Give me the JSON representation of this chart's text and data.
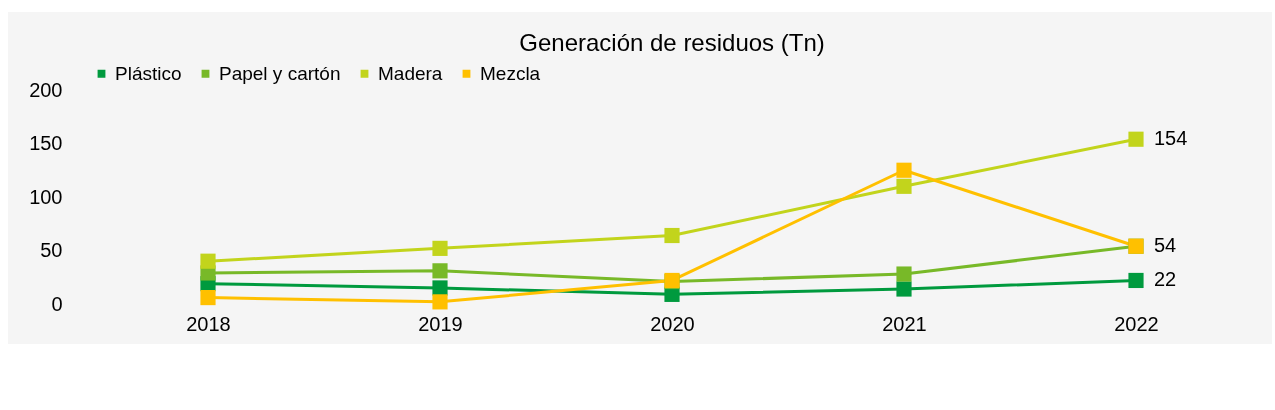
{
  "chart_data": {
    "type": "line",
    "title": "Generación de residuos (Tn)",
    "categories": [
      "2018",
      "2019",
      "2020",
      "2021",
      "2022"
    ],
    "series": [
      {
        "name": "Plástico",
        "color": "#009a3e",
        "values": [
          19,
          15,
          9,
          14,
          22
        ],
        "value_labels": [
          null,
          null,
          null,
          null,
          "22"
        ]
      },
      {
        "name": "Papel y cartón",
        "color": "#78b928",
        "values": [
          29,
          31,
          21,
          28,
          54
        ]
      },
      {
        "name": "Madera",
        "color": "#c2d41c",
        "values": [
          40,
          52,
          64,
          110,
          154
        ],
        "value_labels": [
          null,
          null,
          null,
          null,
          "154"
        ]
      },
      {
        "name": "Mezcla",
        "color": "#ffc000",
        "values": [
          6,
          2,
          22,
          125,
          54
        ],
        "value_labels": [
          null,
          null,
          null,
          null,
          "54"
        ]
      }
    ],
    "ylim": [
      0,
      200
    ],
    "yticks": [
      0,
      50,
      100,
      150,
      200
    ],
    "grid": false,
    "legend": "top",
    "marker": "square",
    "line_style": "solid"
  }
}
